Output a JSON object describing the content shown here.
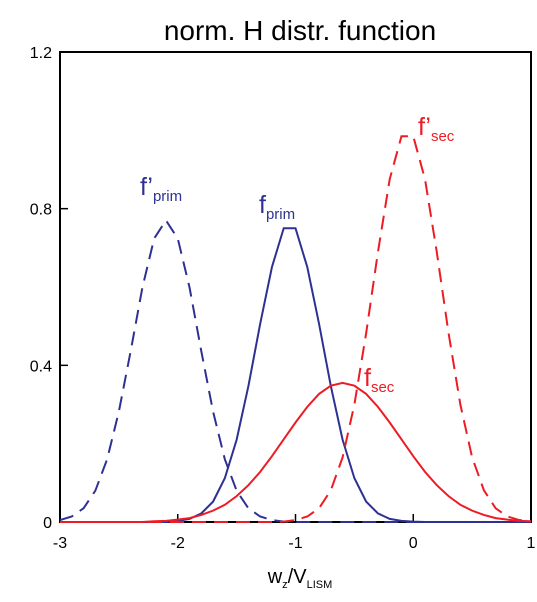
{
  "chart_data": {
    "type": "line",
    "title": "norm. H distr. function",
    "xlabel": [
      {
        "text": "w"
      },
      {
        "text": "z",
        "sub": true
      },
      {
        "text": "/V"
      },
      {
        "text": "LISM",
        "sub": true
      }
    ],
    "x": [
      -3,
      -2.9,
      -2.8,
      -2.7,
      -2.6,
      -2.5,
      -2.4,
      -2.3,
      -2.2,
      -2.1,
      -2,
      -1.9,
      -1.8,
      -1.7,
      -1.6,
      -1.5,
      -1.4,
      -1.3,
      -1.2,
      -1.1,
      -1,
      -0.9,
      -0.8,
      -0.7,
      -0.6,
      -0.5,
      -0.4,
      -0.3,
      -0.2,
      -0.1,
      0,
      0.1,
      0.2,
      0.3,
      0.4,
      0.5,
      0.6,
      0.7,
      0.8,
      0.9,
      1
    ],
    "series": [
      {
        "label": {
          "main": "f’",
          "sub": "prim"
        },
        "color": "#2e3192",
        "dashed": true,
        "values": [
          0.005,
          0.014,
          0.035,
          0.08,
          0.16,
          0.282,
          0.436,
          0.599,
          0.724,
          0.77,
          0.724,
          0.599,
          0.436,
          0.282,
          0.16,
          0.08,
          0.035,
          0.014,
          0.005,
          0.001,
          0,
          0,
          0,
          0,
          0,
          0,
          0,
          0,
          0,
          0,
          0,
          0,
          0,
          0,
          0,
          0,
          0,
          0,
          0,
          0,
          0
        ]
      },
      {
        "label": {
          "main": "f",
          "sub": "prim"
        },
        "color": "#2e3192",
        "dashed": false,
        "values": [
          0,
          0,
          0,
          0,
          0,
          0,
          0,
          0,
          0,
          0,
          0.003,
          0.008,
          0.022,
          0.052,
          0.112,
          0.21,
          0.347,
          0.506,
          0.651,
          0.75,
          0.75,
          0.651,
          0.506,
          0.347,
          0.21,
          0.112,
          0.052,
          0.022,
          0.008,
          0.003,
          0.001,
          0,
          0,
          0,
          0,
          0,
          0,
          0,
          0,
          0,
          0
        ]
      },
      {
        "label": {
          "main": "f’",
          "sub": "sec"
        },
        "color": "#ed1c24",
        "dashed": true,
        "values": [
          0,
          0,
          0,
          0,
          0,
          0,
          0,
          0,
          0,
          0,
          0,
          0,
          0,
          0,
          0,
          0,
          0,
          0,
          0,
          0.001,
          0.005,
          0.014,
          0.035,
          0.081,
          0.165,
          0.3,
          0.482,
          0.689,
          0.875,
          0.985,
          0.985,
          0.875,
          0.689,
          0.482,
          0.3,
          0.165,
          0.081,
          0.035,
          0.014,
          0.005,
          0.001
        ]
      },
      {
        "label": {
          "main": "f",
          "sub": "sec"
        },
        "color": "#ed1c24",
        "dashed": false,
        "values": [
          0,
          0,
          0,
          0,
          0,
          0,
          0,
          0,
          0.002,
          0.003,
          0.006,
          0.01,
          0.018,
          0.029,
          0.044,
          0.066,
          0.094,
          0.128,
          0.168,
          0.211,
          0.254,
          0.294,
          0.327,
          0.348,
          0.355,
          0.348,
          0.327,
          0.294,
          0.254,
          0.211,
          0.168,
          0.128,
          0.094,
          0.066,
          0.044,
          0.029,
          0.018,
          0.01,
          0.006,
          0.003,
          0.002
        ]
      }
    ],
    "xlim": [
      -3,
      1
    ],
    "xticks": [
      -3,
      -2,
      -1,
      0,
      1
    ],
    "ylim": [
      0,
      1.2
    ],
    "yticks": [
      0,
      0.4,
      0.8,
      1.2
    ]
  }
}
